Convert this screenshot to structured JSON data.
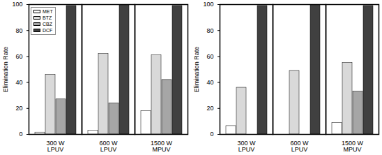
{
  "chart_data": [
    {
      "type": "bar",
      "categories": [
        "300 W\nLPUV",
        "600 W\nLPUV",
        "1500 W\nMPUV"
      ],
      "ylabel": "Elimination Rate",
      "ylim": [
        0,
        100
      ],
      "yticks": [
        0,
        20,
        40,
        60,
        80,
        100
      ],
      "legend": "top-left",
      "series": [
        {
          "name": "MET",
          "color": "#ffffff",
          "values": [
            1.5,
            3,
            18
          ]
        },
        {
          "name": "BTZ",
          "color": "#d9d9d9",
          "values": [
            46,
            62,
            61
          ]
        },
        {
          "name": "CBZ",
          "color": "#a6a6a6",
          "values": [
            27,
            24,
            42
          ]
        },
        {
          "name": "DCF",
          "color": "#404040",
          "values": [
            99,
            100,
            99
          ]
        }
      ]
    },
    {
      "type": "bar",
      "categories": [
        "300 W\nLPUV",
        "600 W\nLPUV",
        "1500 W\nMPUV"
      ],
      "ylabel": "Elimination Rate",
      "ylim": [
        0,
        100
      ],
      "yticks": [
        0,
        20,
        40,
        60,
        80,
        100
      ],
      "series": [
        {
          "name": "MET",
          "color": "#ffffff",
          "values": [
            6.5,
            0,
            9
          ]
        },
        {
          "name": "BTZ",
          "color": "#d9d9d9",
          "values": [
            36,
            49,
            55
          ]
        },
        {
          "name": "CBZ",
          "color": "#a6a6a6",
          "values": [
            0,
            0,
            33
          ]
        },
        {
          "name": "DCF",
          "color": "#404040",
          "values": [
            99,
            100,
            99
          ]
        }
      ]
    }
  ]
}
